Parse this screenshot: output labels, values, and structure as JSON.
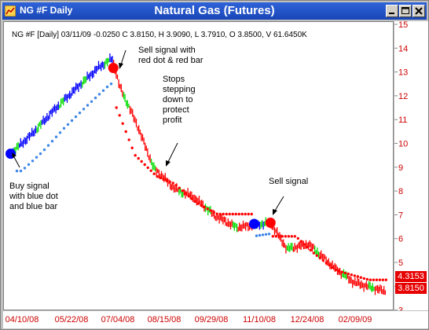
{
  "window": {
    "short_title": "NG #F Daily",
    "title": "Natural Gas (Futures)"
  },
  "chart_header": {
    "info": "NG #F [Daily] 03/11/09 -0.0250 C 3.8150, H 3.9090, L 3.7910, O 3.8500, V 61.6450K"
  },
  "annotations": {
    "sell_signal_1": [
      "Sell signal with",
      "red dot & red bar"
    ],
    "stops": [
      "Stops",
      "stepping",
      "down to",
      "protect",
      "profit"
    ],
    "buy_signal": [
      "Buy signal",
      "with blue dot",
      "and blue bar"
    ],
    "sell_signal_2": [
      "Sell signal"
    ]
  },
  "price_boxes": {
    "upper": "4.3153",
    "lower": "3.8150"
  },
  "colors": {
    "up_bar": "#0000ff",
    "down_bar": "#ff0000",
    "neutral_bar": "#00dd00",
    "buy_dot": "#0000ff",
    "sell_dot": "#ff0000",
    "stop_long": "#3d85e8",
    "stop_short": "#ff0000",
    "axis_text": "#cc0000",
    "title_bar": "#1946b6"
  },
  "chart_data": {
    "type": "ohlc",
    "y_ticks": [
      "15",
      "14",
      "13",
      "12",
      "11",
      "10",
      "9",
      "8",
      "7",
      "6",
      "5",
      "4",
      "3"
    ],
    "ylim": [
      3,
      15
    ],
    "x_ticks": [
      "04/10/08",
      "05/22/08",
      "07/04/08",
      "08/15/08",
      "09/29/08",
      "11/10/08",
      "12/24/08",
      "02/09/09"
    ],
    "approx_close_path": [
      {
        "date": "04/01/08",
        "price": 9.6
      },
      {
        "date": "04/20/08",
        "price": 10.4
      },
      {
        "date": "05/10/08",
        "price": 11.4
      },
      {
        "date": "05/30/08",
        "price": 12.3
      },
      {
        "date": "06/20/08",
        "price": 13.2
      },
      {
        "date": "07/03/08",
        "price": 13.6
      },
      {
        "date": "07/10/08",
        "price": 12.4
      },
      {
        "date": "07/25/08",
        "price": 10.9
      },
      {
        "date": "08/10/08",
        "price": 9.0
      },
      {
        "date": "08/30/08",
        "price": 8.1
      },
      {
        "date": "09/15/08",
        "price": 7.8
      },
      {
        "date": "10/05/08",
        "price": 7.0
      },
      {
        "date": "10/25/08",
        "price": 6.5
      },
      {
        "date": "11/10/08",
        "price": 6.6
      },
      {
        "date": "11/25/08",
        "price": 6.7
      },
      {
        "date": "12/10/08",
        "price": 5.6
      },
      {
        "date": "12/30/08",
        "price": 5.8
      },
      {
        "date": "01/20/09",
        "price": 4.9
      },
      {
        "date": "02/09/09",
        "price": 4.2
      },
      {
        "date": "03/11/09",
        "price": 3.8
      }
    ],
    "signals": [
      {
        "type": "buy",
        "date": "04/01/08",
        "price": 9.6
      },
      {
        "type": "sell",
        "date": "07/04/08",
        "price": 13.2
      },
      {
        "type": "buy",
        "date": "11/10/08",
        "price": 6.65
      },
      {
        "type": "sell",
        "date": "11/25/08",
        "price": 6.7
      }
    ],
    "last_values": {
      "stop": 4.3153,
      "close": 3.815
    }
  }
}
